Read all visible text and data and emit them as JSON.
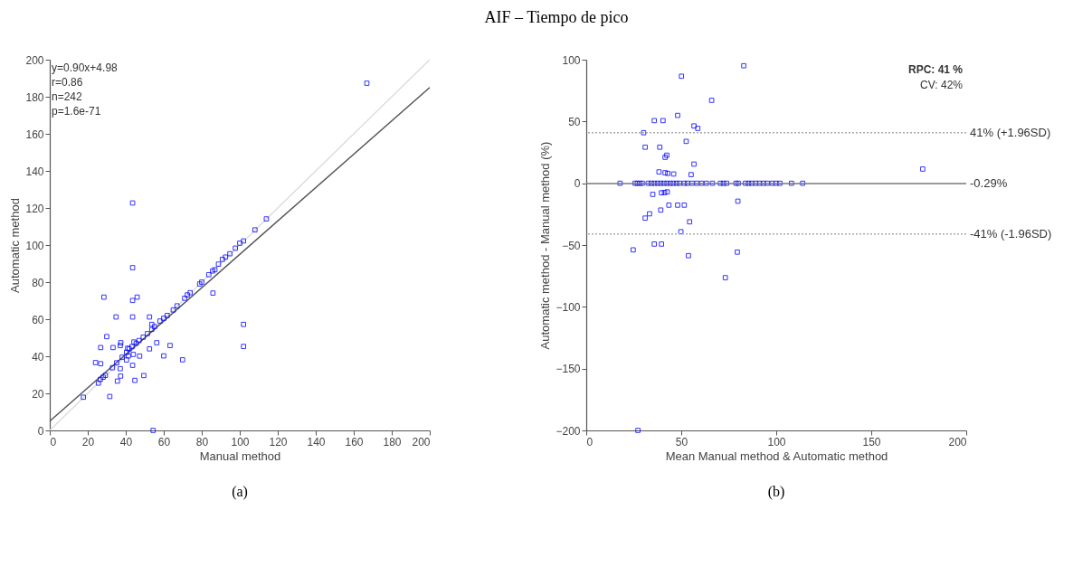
{
  "chart_data": [
    {
      "type": "other",
      "title": "AIF – Tiempo de pico"
    },
    {
      "type": "scatter",
      "xlabel": "Manual method",
      "ylabel": "Automatic method",
      "xlim": [
        0,
        200
      ],
      "ylim": [
        0,
        200
      ],
      "xticks": [
        0,
        20,
        40,
        60,
        80,
        100,
        120,
        140,
        160,
        180,
        200
      ],
      "yticks": [
        0,
        20,
        40,
        60,
        80,
        100,
        120,
        140,
        160,
        180,
        200
      ],
      "grid": false,
      "marker": "square",
      "annotations": [
        "y=0.90x+4.98",
        "r=0.86",
        "n=242",
        "p=1.6e-71",
        "(a)"
      ],
      "series": [
        {
          "color": "#0000ff",
          "x": [
            166.9,
            43.6,
            114,
            108,
            102,
            100,
            97.7,
            94.8,
            92.5,
            90.9,
            88.8,
            86.9,
            85.7,
            83.7,
            80,
            78.9,
            73.9,
            72.4,
            71,
            67,
            65,
            61.8,
            60,
            58,
            43.6,
            28.5,
            43.6,
            46,
            85.9,
            34.9,
            43.6,
            52.5,
            53.7,
            102,
            102,
            30,
            26.8,
            33.3,
            37.4,
            37.1,
            44.3,
            56.3,
            63.3,
            52.5,
            60,
            69.9,
            47.3,
            24.1,
            26.8,
            43.6,
            37.1,
            37.3,
            49.5,
            44.8,
            35.6,
            31.6,
            17.7,
            54.4,
            25.6,
            26.6,
            28.1,
            29.3,
            33,
            35.2,
            38.1,
            40.4,
            41.8,
            43.3,
            45.5,
            47,
            49.2,
            51.4,
            53.7,
            55.1,
            40.4,
            41.4,
            44,
            41
          ],
          "values": [
            187.3,
            122.7,
            114.1,
            108.2,
            102.2,
            101,
            98.3,
            95.3,
            93.5,
            92.3,
            89.7,
            86.7,
            86,
            84,
            80,
            79,
            74.3,
            73.1,
            71.3,
            67.2,
            65,
            62,
            60.5,
            59,
            87.8,
            71.9,
            70.1,
            71.9,
            74.1,
            61.2,
            61.2,
            61.2,
            57.2,
            57.2,
            45.3,
            50.6,
            44.7,
            44.7,
            47.3,
            45.8,
            47.7,
            47.3,
            45.8,
            44,
            40.2,
            38.1,
            40.1,
            36.6,
            36,
            35.1,
            33.3,
            29.3,
            29.6,
            27,
            26.6,
            18.3,
            17.9,
            0,
            25.5,
            27.5,
            28.7,
            29.7,
            33.8,
            36.5,
            39.5,
            42.2,
            44,
            45.2,
            47,
            48.5,
            50.3,
            52.2,
            54.5,
            56,
            38,
            40.2,
            41,
            44.3
          ]
        },
        {
          "type": "line",
          "color": "#dddddd",
          "marker": "none",
          "line_style": "solid",
          "x": [
            0,
            200
          ],
          "values": [
            0,
            200
          ]
        },
        {
          "type": "line",
          "color": "#555555",
          "marker": "none",
          "line_style": "solid",
          "x": [
            0,
            200
          ],
          "values": [
            5,
            185
          ]
        }
      ]
    },
    {
      "type": "scatter",
      "xlabel": "Mean Manual method & Automatic method",
      "ylabel": "Automatic method - Manual method (%)",
      "xlim": [
        0,
        200
      ],
      "ylim": [
        -200,
        100
      ],
      "xticks": [
        0,
        50,
        100,
        150,
        200
      ],
      "yticks": [
        -200,
        -150,
        -100,
        -50,
        0,
        50,
        100
      ],
      "grid": false,
      "marker": "square",
      "annotations": [
        "RPC: 41 %",
        "CV: 42%",
        "(b)"
      ],
      "ref_lines": [
        {
          "axis": "y",
          "value": -0.29,
          "label": "-0.29%",
          "color": "#777777",
          "line_style": "solid"
        },
        {
          "axis": "y",
          "value": 41,
          "label": "41% (+1.96SD)",
          "color": "#aaaaaa",
          "line_style": "dotted"
        },
        {
          "axis": "y",
          "value": -41,
          "label": "-41% (-1.96SD)",
          "color": "#aaaaaa",
          "line_style": "dotted"
        }
      ],
      "series": [
        {
          "color": "#0000ff",
          "x": [
            82.9,
            50.1,
            66,
            48.1,
            35.8,
            40.4,
            56.7,
            58.7,
            30.2,
            52.6,
            31,
            38.7,
            42.4,
            41.5,
            56.7,
            177.1,
            38.3,
            41.5,
            42.9,
            46,
            55.2,
            35,
            39.6,
            41.2,
            42.6,
            43.5,
            48.1,
            51.6,
            39.2,
            79.8,
            33.3,
            31,
            54.4,
            49.8,
            35.8,
            39.6,
            24.7,
            53.8,
            79.5,
            73.2,
            27.2,
            17.8,
            25.7,
            26.9,
            28.2,
            29.5,
            32.6,
            34.3,
            35.9,
            37.6,
            39.2,
            40.9,
            42.5,
            44.2,
            45.8,
            47.5,
            49.1,
            51.6,
            53.3,
            55.7,
            58.2,
            60.7,
            63.2,
            66.4,
            70.6,
            72.2,
            73.9,
            78.8,
            80,
            83.8,
            85.4,
            87.1,
            89.2,
            91.2,
            93.2,
            95.3,
            97.8,
            99.9,
            101.9,
            108,
            113.9
          ],
          "values": [
            95.1,
            86.6,
            67.1,
            54.9,
            50.7,
            50.7,
            46.4,
            44.4,
            40.9,
            33.9,
            29.2,
            29.2,
            22.7,
            21,
            15.5,
            11.5,
            9.2,
            8.5,
            8,
            7.5,
            7,
            -9,
            -7.7,
            -7.5,
            -7,
            -17.7,
            -17.7,
            -17.7,
            -21.7,
            -14.5,
            -24.7,
            -28.2,
            -31.2,
            -39.2,
            -49.2,
            -49.2,
            -53.9,
            -58.6,
            -55.7,
            -76.4,
            -200,
            0,
            0,
            0,
            0,
            0,
            0,
            0,
            0,
            0,
            0,
            0,
            0,
            0,
            0,
            0,
            0,
            0,
            0,
            0,
            0,
            0,
            0,
            0,
            0,
            0,
            0,
            0,
            0,
            0,
            0,
            0,
            0,
            0,
            0,
            0,
            0,
            0,
            0,
            0,
            0
          ]
        }
      ]
    }
  ]
}
